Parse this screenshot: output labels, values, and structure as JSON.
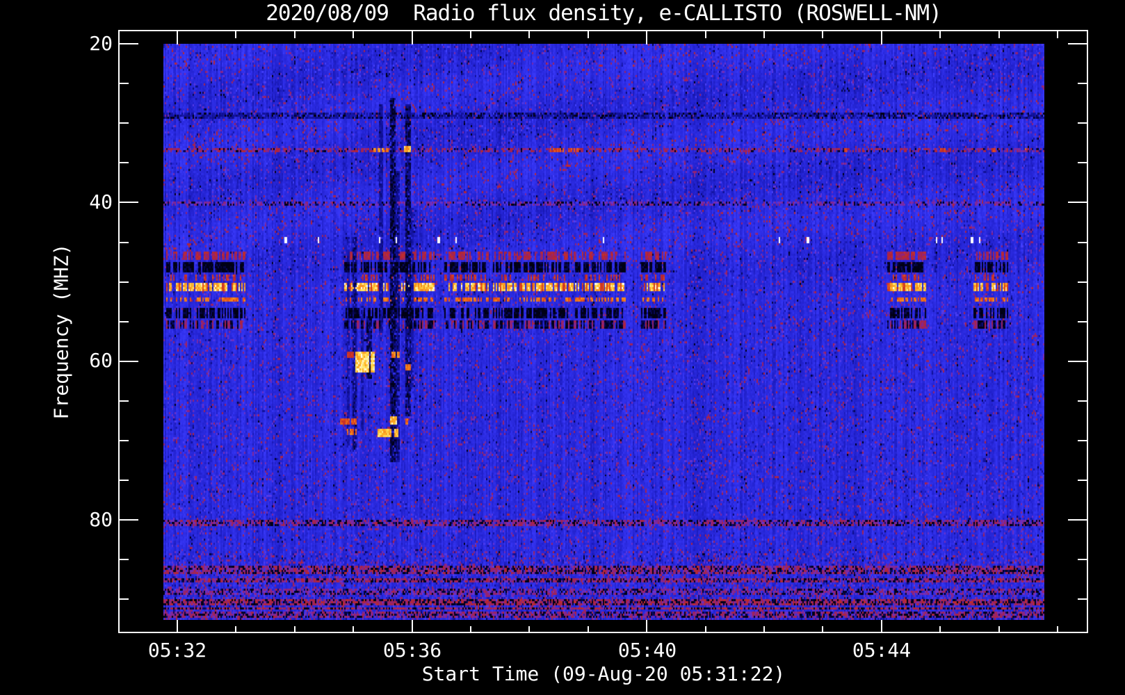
{
  "chart_data": {
    "type": "heatmap",
    "title": "2020/08/09  Radio flux density, e-CALLISTO (ROSWELL-NM)",
    "xlabel": "Start Time (09-Aug-20 05:31:22)",
    "ylabel": "Frequency (MHZ)",
    "observatory": "ROSWELL-NM",
    "instrument": "e-CALLISTO",
    "date": "2020/08/09",
    "start_time": "05:31:22",
    "x_axis": {
      "major_ticks": [
        {
          "label": "05:32",
          "minutes_from_0531": 1
        },
        {
          "label": "05:36",
          "minutes_from_0531": 5
        },
        {
          "label": "05:40",
          "minutes_from_0531": 9
        },
        {
          "label": "05:44",
          "minutes_from_0531": 13
        }
      ],
      "minor_tick_minutes": [
        2,
        3,
        4,
        6,
        7,
        8,
        10,
        11,
        12,
        14,
        15,
        16
      ]
    },
    "y_axis": {
      "major_ticks": [
        {
          "label": "20",
          "mhz": 20
        },
        {
          "label": "40",
          "mhz": 40
        },
        {
          "label": "60",
          "mhz": 60
        },
        {
          "label": "80",
          "mhz": 80
        }
      ],
      "minor_tick_mhz": [
        25,
        30,
        35,
        45,
        50,
        55,
        65,
        70,
        75,
        85,
        90
      ],
      "direction": "increasing-downward"
    },
    "data_extent": {
      "freq_mhz": [
        20,
        92.6
      ],
      "time_fraction": [
        0,
        1
      ],
      "time_span_minutes": 15
    },
    "colormap_stops": [
      [
        0.0,
        "#000008"
      ],
      [
        0.1,
        "#00001a"
      ],
      [
        0.16,
        "#0d0d8c"
      ],
      [
        0.3,
        "#2121cd"
      ],
      [
        0.45,
        "#3434f2"
      ],
      [
        0.55,
        "#4242ff"
      ],
      [
        0.6,
        "#6a30c8"
      ],
      [
        0.66,
        "#8c2380"
      ],
      [
        0.72,
        "#b02438"
      ],
      [
        0.8,
        "#d53a1f"
      ],
      [
        0.87,
        "#f07818"
      ],
      [
        0.93,
        "#ffb428"
      ],
      [
        0.97,
        "#ffe560"
      ],
      [
        1.0,
        "#ffffff"
      ]
    ],
    "background_color": "#000000",
    "axis_color": "#ffffff",
    "features": {
      "noise": {
        "col_base": 0.3,
        "col_var": 0.14,
        "jitter": 0.1,
        "speckle_p": 0.09,
        "speckle_lo": 0.56,
        "speckle_hi": 0.72,
        "dark_p": 0.04,
        "bottom_boost_above_mhz": 84,
        "bottom_boost": 0.1
      },
      "h_bands": [
        {
          "f0": 28.6,
          "f1": 29.3,
          "p": 0.45,
          "lo": 0.16,
          "hi": 0.24,
          "darkp": 0.25
        },
        {
          "f0": 32.9,
          "f1": 33.6,
          "p": 0.45,
          "lo": 0.62,
          "hi": 0.74,
          "darkp": 0.1
        },
        {
          "f0": 39.6,
          "f1": 40.3,
          "p": 0.4,
          "lo": 0.58,
          "hi": 0.68,
          "darkp": 0.2
        },
        {
          "f0": 79.7,
          "f1": 80.8,
          "p": 0.5,
          "lo": 0.6,
          "hi": 0.72,
          "darkp": 0.25
        },
        {
          "f0": 85.8,
          "f1": 87.9,
          "p": 0.55,
          "lo": 0.6,
          "hi": 0.74,
          "darkp": 0.3
        },
        {
          "f0": 88.7,
          "f1": 89.6,
          "p": 0.45,
          "lo": 0.58,
          "hi": 0.7,
          "darkp": 0.25
        },
        {
          "f0": 90.2,
          "f1": 91.4,
          "p": 0.6,
          "lo": 0.62,
          "hi": 0.76,
          "darkp": 0.35
        },
        {
          "f0": 91.7,
          "f1": 92.4,
          "p": 0.5,
          "lo": 0.6,
          "hi": 0.72,
          "darkp": 0.3
        }
      ],
      "rfi_clusters": [
        [
          0.002,
          0.092
        ],
        [
          0.204,
          0.307
        ],
        [
          0.318,
          0.369
        ],
        [
          0.373,
          0.525
        ],
        [
          0.542,
          0.571
        ],
        [
          0.823,
          0.867
        ],
        [
          0.921,
          0.959
        ]
      ],
      "rfi_rows": [
        {
          "f0": 46.3,
          "f1": 47.3,
          "type": "red"
        },
        {
          "f0": 47.5,
          "f1": 48.8,
          "type": "dark"
        },
        {
          "f0": 49.1,
          "f1": 49.8,
          "type": "sparse-red"
        },
        {
          "f0": 50.1,
          "f1": 51.1,
          "type": "bright"
        },
        {
          "f0": 51.9,
          "f1": 52.6,
          "type": "orange"
        },
        {
          "f0": 53.2,
          "f1": 54.5,
          "type": "dark"
        },
        {
          "f0": 54.8,
          "f1": 55.8,
          "type": "dark-red"
        }
      ],
      "v_streaks": [
        {
          "t": 0.209,
          "f0": 44.3,
          "f1": 71.0,
          "w": 0.0016,
          "depth": 0.55
        },
        {
          "t": 0.217,
          "f0": 44.3,
          "f1": 71.4,
          "w": 0.0024,
          "depth": 0.7
        },
        {
          "t": 0.225,
          "f0": 53.0,
          "f1": 68.8,
          "w": 0.0016,
          "depth": 0.55
        },
        {
          "t": 0.233,
          "f0": 54.3,
          "f1": 62.2,
          "w": 0.0032,
          "depth": 0.8
        },
        {
          "t": 0.246,
          "f0": 27.6,
          "f1": 56.5,
          "w": 0.0024,
          "depth": 0.6
        },
        {
          "t": 0.26,
          "f0": 26.7,
          "f1": 72.7,
          "w": 0.0032,
          "depth": 0.85
        },
        {
          "t": 0.266,
          "f0": 36.0,
          "f1": 72.7,
          "w": 0.0024,
          "depth": 0.7
        },
        {
          "t": 0.277,
          "f0": 27.6,
          "f1": 67.0,
          "w": 0.0032,
          "depth": 0.8
        },
        {
          "t": 0.282,
          "f0": 40.7,
          "f1": 63.5,
          "w": 0.0016,
          "depth": 0.55
        },
        {
          "t": 0.878,
          "f0": 44.3,
          "f1": 48.7,
          "w": 0.0016,
          "depth": 0.6
        }
      ],
      "bursts": [
        {
          "t0": 0.218,
          "t1": 0.242,
          "f0": 58.7,
          "f1": 61.3,
          "lo": 0.9,
          "hi": 1.0,
          "p": 0.85
        },
        {
          "t0": 0.207,
          "t1": 0.215,
          "f0": 58.8,
          "f1": 59.5,
          "lo": 0.74,
          "hi": 0.82,
          "p": 0.8
        },
        {
          "t0": 0.257,
          "t1": 0.268,
          "f0": 58.7,
          "f1": 59.5,
          "lo": 0.82,
          "hi": 0.92,
          "p": 0.8
        },
        {
          "t0": 0.274,
          "t1": 0.28,
          "f0": 60.3,
          "f1": 61.1,
          "lo": 0.82,
          "hi": 0.9,
          "p": 0.8
        },
        {
          "t0": 0.2,
          "t1": 0.221,
          "f0": 67.1,
          "f1": 68.1,
          "lo": 0.76,
          "hi": 0.88,
          "p": 0.75
        },
        {
          "t0": 0.257,
          "t1": 0.268,
          "f0": 67.0,
          "f1": 68.1,
          "lo": 0.9,
          "hi": 1.0,
          "p": 0.85
        },
        {
          "t0": 0.274,
          "t1": 0.28,
          "f0": 67.1,
          "f1": 67.9,
          "lo": 0.8,
          "hi": 0.9,
          "p": 0.8
        },
        {
          "t0": 0.243,
          "t1": 0.266,
          "f0": 68.5,
          "f1": 69.6,
          "lo": 0.88,
          "hi": 0.98,
          "p": 0.8
        },
        {
          "t0": 0.207,
          "t1": 0.219,
          "f0": 68.6,
          "f1": 69.4,
          "lo": 0.8,
          "hi": 0.9,
          "p": 0.8
        },
        {
          "t0": 0.275,
          "t1": 0.279,
          "f0": 68.6,
          "f1": 69.2,
          "lo": 0.74,
          "hi": 0.84,
          "p": 0.8
        },
        {
          "t0": 0.238,
          "t1": 0.255,
          "f0": 32.9,
          "f1": 33.5,
          "lo": 0.84,
          "hi": 0.94,
          "p": 0.7
        },
        {
          "t0": 0.272,
          "t1": 0.281,
          "f0": 32.8,
          "f1": 33.6,
          "lo": 0.88,
          "hi": 0.98,
          "p": 0.7
        },
        {
          "t0": 0.438,
          "t1": 0.471,
          "f0": 33.0,
          "f1": 33.5,
          "lo": 0.76,
          "hi": 0.86,
          "p": 0.6
        },
        {
          "t0": 0.77,
          "t1": 0.776,
          "f0": 33.0,
          "f1": 33.5,
          "lo": 0.74,
          "hi": 0.84,
          "p": 0.8
        },
        {
          "t0": 0.882,
          "t1": 0.888,
          "f0": 33.0,
          "f1": 33.5,
          "lo": 0.74,
          "hi": 0.84,
          "p": 0.8
        },
        {
          "t0": 0.941,
          "t1": 0.946,
          "f0": 33.0,
          "f1": 33.5,
          "lo": 0.74,
          "hi": 0.84,
          "p": 0.8
        },
        {
          "t0": 0.978,
          "t1": 0.981,
          "f0": 33.0,
          "f1": 33.4,
          "lo": 0.8,
          "hi": 0.88,
          "p": 0.9
        }
      ],
      "white_specks": {
        "f0": 44.3,
        "f1": 45.1,
        "t_list": [
          0.138,
          0.175,
          0.245,
          0.264,
          0.312,
          0.332,
          0.499,
          0.7,
          0.732,
          0.878,
          0.885,
          0.919,
          0.927
        ]
      },
      "wisp": {
        "amp": 0.035,
        "fade_start_mhz": 45,
        "fade_width_mhz": 10
      }
    }
  }
}
